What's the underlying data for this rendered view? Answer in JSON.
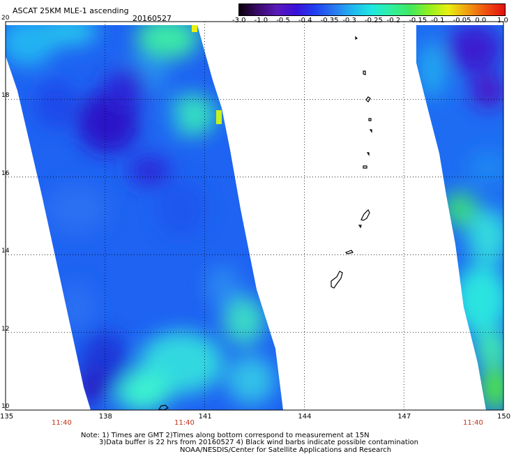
{
  "header": {
    "product": "ASCAT 25KM MLE-1 ascending",
    "date": "20160527"
  },
  "colorbar": {
    "labels": [
      "-3.0",
      "-1.0",
      "-0.5",
      "-0.4",
      "-0.35",
      "-0.3",
      "-0.25",
      "-0.2",
      "-0.15",
      "-0.1",
      "-0.05",
      "0.0",
      "1.0"
    ],
    "colors": [
      "#0a000a",
      "#3a0a6a",
      "#5a1aba",
      "#3a10d8",
      "#2040f0",
      "#2a78f0",
      "#20b8f0",
      "#20e8e0",
      "#30f0a0",
      "#40e860",
      "#90f020",
      "#e8f010",
      "#f0a010",
      "#f05010",
      "#e01010"
    ]
  },
  "map": {
    "lat_labels": [
      "20",
      "18",
      "16",
      "14",
      "12",
      "10"
    ],
    "lon_labels": [
      "135",
      "138",
      "141",
      "144",
      "147",
      "150"
    ],
    "time_labels": [
      "11:40",
      "11:40",
      "11:40"
    ],
    "lat_range": [
      10,
      20
    ],
    "lon_range": [
      135,
      150
    ]
  },
  "footer": {
    "note_line1": "Note: 1) Times are GMT 2)Times along bottom correspond to measurement at 15N",
    "note_line2": "3)Data buffer is 22 hrs from 20160527 4) Black wind barbs indicate possible contamination",
    "note_line3": "NOAA/NESDIS/Center for Satellite Applications and Research"
  }
}
